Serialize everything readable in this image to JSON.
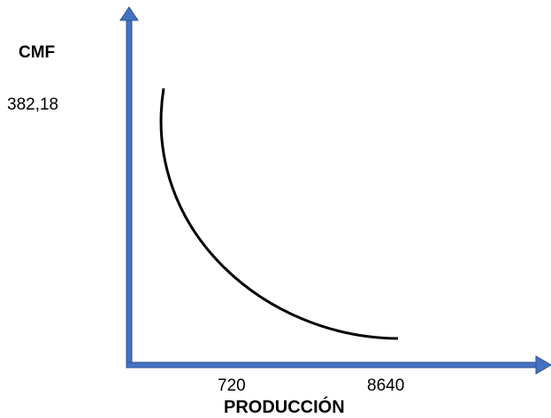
{
  "y_axis": {
    "title": "CMF",
    "tick_label": "382,18"
  },
  "x_axis": {
    "title": "PRODUCCIÓN",
    "tick_labels": [
      "720",
      "8640"
    ]
  },
  "colors": {
    "axis": "#4472C4",
    "axis_stroke": "#2F528F",
    "curve": "#000000"
  }
}
